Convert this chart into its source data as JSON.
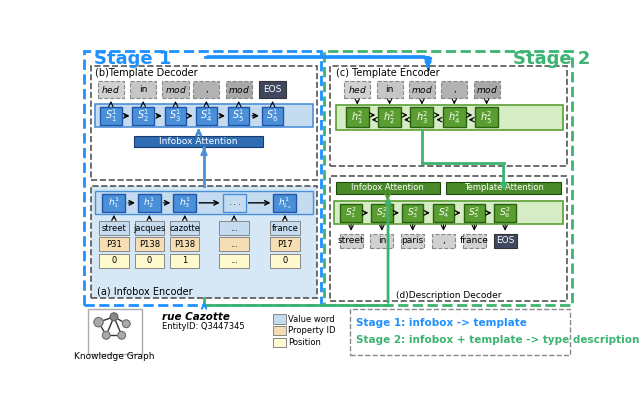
{
  "stage1_color": "#1E90FF",
  "stage2_color": "#3CB371",
  "blue_cell_color": "#4A90D9",
  "blue_cell_light": "#C5DCF0",
  "green_cell_color": "#5A9E32",
  "green_cell_light": "#D6ECC5",
  "eos_color": "#404860",
  "attention_blue_color": "#2E6DB4",
  "attention_green_color": "#4A8A2A",
  "token_gray_light": "#E0E0E0",
  "token_gray_dashed": "#CCCCCC",
  "value_word_color": "#C5DCF0",
  "property_id_color": "#F5DEB3",
  "position_color": "#FFFACD",
  "infobox_enc_bg": "#D6E8F5",
  "template_enc_bg": "#D6ECC5",
  "stage1_title": "Stage 1",
  "stage2_title": "Stage 2",
  "template_decoder_tokens": [
    "$hed$",
    "in",
    "$mod$",
    ",",
    "$mod$",
    "EOS"
  ],
  "s1_labels": [
    "S_1^1",
    "S_2^1",
    "S_3^1",
    "S_4^1",
    "S_5^1",
    "S_6^1"
  ],
  "h1_labels": [
    "h_1^1",
    "h_2^1",
    "h_3^1",
    "...",
    "h_{L_x}^1"
  ],
  "infobox_vals": [
    "street",
    "jacques",
    "cazotte",
    "...",
    "france"
  ],
  "infobox_props": [
    "P31",
    "P138",
    "P138",
    "...",
    "P17"
  ],
  "infobox_pos": [
    "0",
    "0",
    "1",
    "...",
    "0"
  ],
  "template_encoder_tokens": [
    "$hed$",
    "in",
    "$mod$",
    ",",
    "$mod$"
  ],
  "h2_labels": [
    "h_1^2",
    "h_2^2",
    "h_3^2",
    "h_4^2",
    "h_5^2"
  ],
  "s2_labels": [
    "S_1^2",
    "S_2^2",
    "S_3^2",
    "S_4^2",
    "S_5^2",
    "S_6^2"
  ],
  "desc_tokens": [
    "street",
    "in",
    "paris",
    ",",
    "france",
    "EOS"
  ],
  "note_blue": "Stage 1: infobox -> template",
  "note_green": "Stage 2: infobox + template -> type description",
  "bg_color": "#FFFFFF"
}
